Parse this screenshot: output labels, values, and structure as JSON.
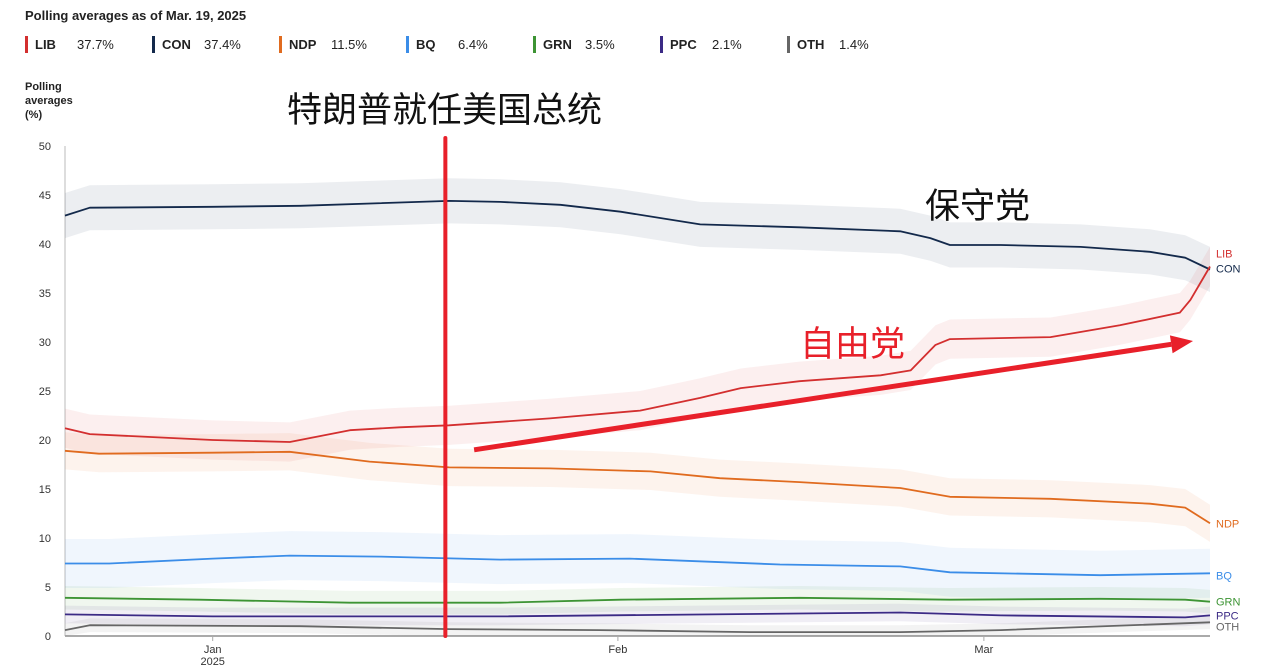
{
  "title": "Polling averages as of Mar. 19, 2025",
  "legend": [
    {
      "name": "LIB",
      "value": "37.7%",
      "color": "#d32f2f"
    },
    {
      "name": "CON",
      "value": "37.4%",
      "color": "#13294b"
    },
    {
      "name": "NDP",
      "value": "11.5%",
      "color": "#e06b1f"
    },
    {
      "name": "BQ",
      "value": "6.4%",
      "color": "#3b8de8"
    },
    {
      "name": "GRN",
      "value": "3.5%",
      "color": "#3d9434"
    },
    {
      "name": "PPC",
      "value": "2.1%",
      "color": "#3b2a85"
    },
    {
      "name": "OTH",
      "value": "1.4%",
      "color": "#666666"
    }
  ],
  "annotations": {
    "inauguration": "特朗普就任美国总统",
    "conservative": "保守党",
    "liberal": "自由党",
    "inauguration_day": 17.8,
    "arrow_from": [
      20,
      19.0
    ],
    "arrow_to": [
      75,
      30.1
    ],
    "line_color": "#e8202a"
  },
  "chart_data": {
    "type": "line",
    "title": "Polling averages as of Mar. 19, 2025",
    "ylabel": "Polling averages (%)",
    "xlabel": "",
    "x_unit": "days since Jan 1, 2025",
    "xlim": [
      -11.3,
      76.3
    ],
    "ylim": [
      0,
      50
    ],
    "yticks": [
      0,
      5,
      10,
      15,
      20,
      25,
      30,
      35,
      40,
      45,
      50
    ],
    "xticks": [
      {
        "value": 0,
        "label": "Jan",
        "sub": "2025"
      },
      {
        "value": 31,
        "label": "Feb",
        "sub": ""
      },
      {
        "value": 59,
        "label": "Mar",
        "sub": ""
      }
    ],
    "grid": false,
    "series": [
      {
        "name": "CON",
        "color": "#13294b",
        "band": 2.3,
        "points": [
          [
            -11.3,
            42.9
          ],
          [
            -9.4,
            43.7
          ],
          [
            0,
            43.8
          ],
          [
            6.7,
            43.9
          ],
          [
            18.1,
            44.4
          ],
          [
            22,
            44.3
          ],
          [
            26.6,
            44.0
          ],
          [
            31.2,
            43.3
          ],
          [
            37.3,
            42.0
          ],
          [
            44.9,
            41.7
          ],
          [
            52.6,
            41.3
          ],
          [
            54.9,
            40.6
          ],
          [
            56.4,
            39.9
          ],
          [
            60.3,
            39.9
          ],
          [
            66.4,
            39.7
          ],
          [
            71.7,
            39.2
          ],
          [
            74.4,
            38.6
          ],
          [
            76.3,
            37.4
          ]
        ]
      },
      {
        "name": "LIB",
        "color": "#d32f2f",
        "band": 2.0,
        "points": [
          [
            -11.3,
            21.2
          ],
          [
            -9.4,
            20.6
          ],
          [
            0,
            20.0
          ],
          [
            5.9,
            19.8
          ],
          [
            10.5,
            21.0
          ],
          [
            14.3,
            21.3
          ],
          [
            18.1,
            21.5
          ],
          [
            25.8,
            22.2
          ],
          [
            32.7,
            23.0
          ],
          [
            37.3,
            24.3
          ],
          [
            40.4,
            25.3
          ],
          [
            44.9,
            26.0
          ],
          [
            51.1,
            26.6
          ],
          [
            53.4,
            27.1
          ],
          [
            55.3,
            29.7
          ],
          [
            56.4,
            30.3
          ],
          [
            64.1,
            30.5
          ],
          [
            69.4,
            31.7
          ],
          [
            74.0,
            33.0
          ],
          [
            74.8,
            34.3
          ],
          [
            76.3,
            37.7
          ]
        ]
      },
      {
        "name": "NDP",
        "color": "#e06b1f",
        "band": 1.9,
        "points": [
          [
            -11.3,
            18.9
          ],
          [
            -8.7,
            18.6
          ],
          [
            0,
            18.7
          ],
          [
            5.9,
            18.8
          ],
          [
            12,
            17.8
          ],
          [
            18.1,
            17.2
          ],
          [
            25.8,
            17.1
          ],
          [
            33.5,
            16.8
          ],
          [
            38.8,
            16.1
          ],
          [
            44.9,
            15.7
          ],
          [
            52.6,
            15.1
          ],
          [
            56.4,
            14.2
          ],
          [
            64.1,
            14.0
          ],
          [
            71.7,
            13.5
          ],
          [
            74.4,
            13.1
          ],
          [
            76.3,
            11.5
          ]
        ]
      },
      {
        "name": "BQ",
        "color": "#3b8de8",
        "band": 2.5,
        "points": [
          [
            -11.3,
            7.4
          ],
          [
            -7.9,
            7.4
          ],
          [
            0,
            7.9
          ],
          [
            5.9,
            8.2
          ],
          [
            12.8,
            8.1
          ],
          [
            22,
            7.8
          ],
          [
            31.9,
            7.9
          ],
          [
            43.4,
            7.3
          ],
          [
            52.6,
            7.1
          ],
          [
            56.4,
            6.5
          ],
          [
            67.9,
            6.2
          ],
          [
            76.3,
            6.4
          ]
        ]
      },
      {
        "name": "GRN",
        "color": "#3d9434",
        "band": 1.2,
        "points": [
          [
            -11.3,
            3.9
          ],
          [
            -1,
            3.7
          ],
          [
            10.5,
            3.4
          ],
          [
            22,
            3.4
          ],
          [
            31.2,
            3.7
          ],
          [
            44.9,
            3.9
          ],
          [
            56.4,
            3.7
          ],
          [
            67.9,
            3.8
          ],
          [
            74.4,
            3.7
          ],
          [
            76.3,
            3.5
          ]
        ]
      },
      {
        "name": "PPC",
        "color": "#3b2a85",
        "band": 0.9,
        "points": [
          [
            -11.3,
            2.2
          ],
          [
            0,
            2.0
          ],
          [
            22,
            2.0
          ],
          [
            44.9,
            2.3
          ],
          [
            52.6,
            2.4
          ],
          [
            60.3,
            2.1
          ],
          [
            74.4,
            1.9
          ],
          [
            76.3,
            2.1
          ]
        ]
      },
      {
        "name": "OTH",
        "color": "#666666",
        "band": 0.7,
        "points": [
          [
            -11.3,
            0.6
          ],
          [
            -9.4,
            1.1
          ],
          [
            6.7,
            1.0
          ],
          [
            18.1,
            0.7
          ],
          [
            29.6,
            0.6
          ],
          [
            41.1,
            0.4
          ],
          [
            52.6,
            0.4
          ],
          [
            60.3,
            0.6
          ],
          [
            76.3,
            1.4
          ]
        ]
      }
    ]
  },
  "ylabel_lines": [
    "Polling",
    "averages",
    "(%)"
  ]
}
